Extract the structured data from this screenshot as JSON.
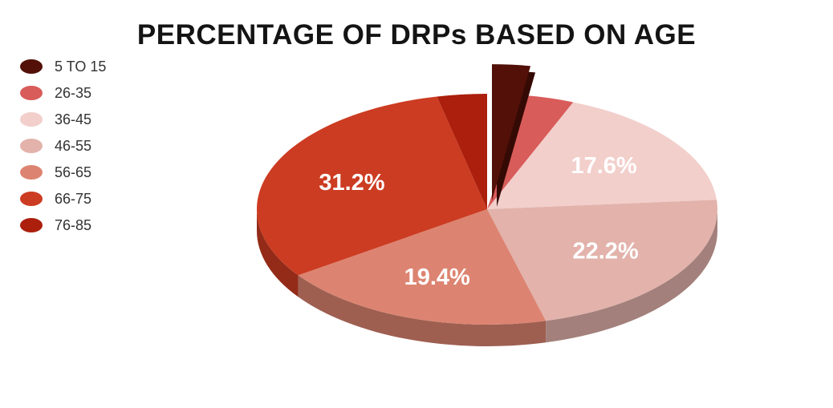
{
  "title": "PERCENTAGE OF DRPs BASED ON AGE",
  "legend": {
    "position": "top-left",
    "items": [
      {
        "label": "5 TO 15",
        "color": "#521008"
      },
      {
        "label": "26-35",
        "color": "#d85c5a"
      },
      {
        "label": "36-45",
        "color": "#f2cfcb"
      },
      {
        "label": "46-55",
        "color": "#e2b2ab"
      },
      {
        "label": "56-65",
        "color": "#dc8471"
      },
      {
        "label": "66-75",
        "color": "#cc3c22"
      },
      {
        "label": "76-85",
        "color": "#ab1f0c"
      }
    ]
  },
  "chart_data": {
    "type": "pie",
    "title": "PERCENTAGE OF DRPs BASED ON AGE",
    "is_3d": true,
    "start_angle_deg": 0,
    "direction": "clockwise",
    "legend_position": "top-left",
    "label_color": "#ffffff",
    "background_color": "#ffffff",
    "slices": [
      {
        "label": "5 TO 15",
        "value": 2.6,
        "display_label": "",
        "color": "#521008",
        "exploded": true
      },
      {
        "label": "26-35",
        "value": 3.5,
        "display_label": "",
        "color": "#d85c5a",
        "exploded": false
      },
      {
        "label": "36-45",
        "value": 17.6,
        "display_label": "17.6%",
        "color": "#f2cfcb",
        "exploded": false
      },
      {
        "label": "46-55",
        "value": 22.2,
        "display_label": "22.2%",
        "color": "#e2b2ab",
        "exploded": false
      },
      {
        "label": "56-65",
        "value": 19.4,
        "display_label": "19.4%",
        "color": "#dc8471",
        "exploded": false
      },
      {
        "label": "66-75",
        "value": 31.2,
        "display_label": "31.2%",
        "color": "#cc3c22",
        "exploded": false
      },
      {
        "label": "76-85",
        "value": 3.5,
        "display_label": "",
        "color": "#ab1f0c",
        "exploded": false
      }
    ]
  }
}
